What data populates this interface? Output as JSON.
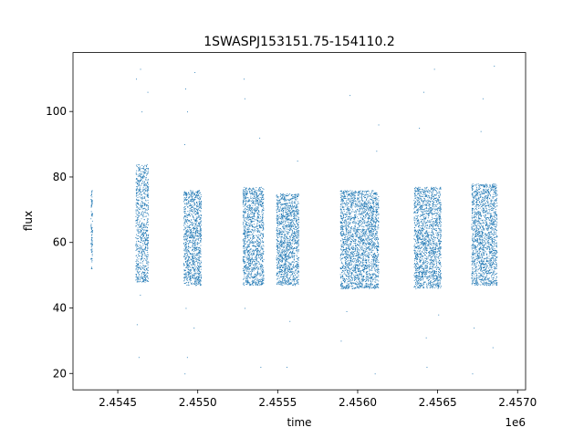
{
  "chart_data": {
    "type": "scatter",
    "title": "1SWASPJ153151.75-154110.2",
    "xlabel": "time",
    "ylabel": "flux",
    "x_offset_label": "1e6",
    "xlim": [
      2.45422,
      2.45705
    ],
    "ylim": [
      15,
      118
    ],
    "x_ticks": [
      {
        "value": 2.4545,
        "label": "2.4545"
      },
      {
        "value": 2.455,
        "label": "2.4550"
      },
      {
        "value": 2.4555,
        "label": "2.4555"
      },
      {
        "value": 2.456,
        "label": "2.4560"
      },
      {
        "value": 2.4565,
        "label": "2.4565"
      },
      {
        "value": 2.457,
        "label": "2.4570"
      }
    ],
    "y_ticks": [
      {
        "value": 20,
        "label": "20"
      },
      {
        "value": 40,
        "label": "40"
      },
      {
        "value": 60,
        "label": "60"
      },
      {
        "value": 80,
        "label": "80"
      },
      {
        "value": 100,
        "label": "100"
      }
    ],
    "grid": false,
    "marker_color": "#1f77b4",
    "series": [
      {
        "clusters": [
          {
            "x_start": 2.45433,
            "x_end": 2.45434,
            "y_min": 52,
            "y_max": 76,
            "outliers": []
          },
          {
            "x_start": 2.45461,
            "x_end": 2.45469,
            "y_min": 48,
            "y_max": 84,
            "outliers": [
              113,
              110,
              106,
              100,
              44,
              35,
              25
            ]
          },
          {
            "x_start": 2.45491,
            "x_end": 2.45502,
            "y_min": 47,
            "y_max": 76,
            "outliers": [
              112,
              107,
              100,
              90,
              40,
              34,
              25,
              20
            ]
          },
          {
            "x_start": 2.45528,
            "x_end": 2.45541,
            "y_min": 47,
            "y_max": 77,
            "outliers": [
              110,
              104,
              92,
              40,
              22
            ]
          },
          {
            "x_start": 2.45549,
            "x_end": 2.45563,
            "y_min": 47,
            "y_max": 75,
            "outliers": [
              85,
              36,
              22
            ]
          },
          {
            "x_start": 2.45589,
            "x_end": 2.45613,
            "y_min": 46,
            "y_max": 76,
            "outliers": [
              105,
              96,
              88,
              39,
              30,
              20
            ]
          },
          {
            "x_start": 2.45635,
            "x_end": 2.45652,
            "y_min": 46,
            "y_max": 77,
            "outliers": [
              113,
              106,
              95,
              38,
              31,
              22
            ]
          },
          {
            "x_start": 2.45671,
            "x_end": 2.45687,
            "y_min": 47,
            "y_max": 78,
            "outliers": [
              114,
              104,
              94,
              34,
              28,
              20
            ]
          }
        ]
      }
    ]
  }
}
